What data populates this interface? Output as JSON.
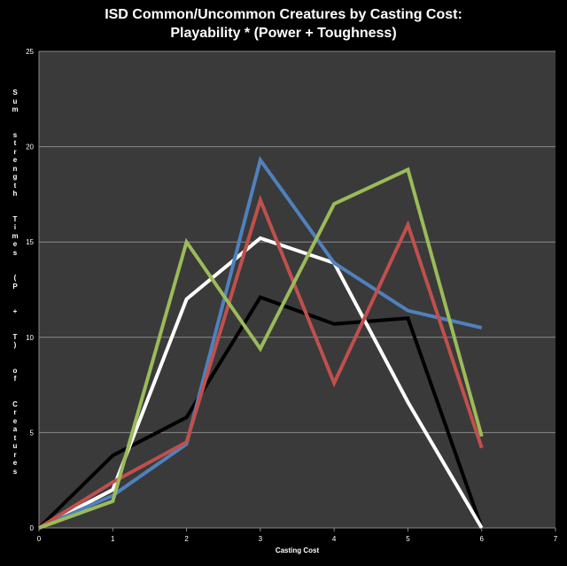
{
  "chart_data": {
    "type": "line",
    "title": "ISD Common/Uncommon Creatures by Casting Cost:",
    "subtitle": "Playability * (Power + Toughness)",
    "xlabel": "Casting Cost",
    "ylabel": "Sum strength Times (P + T) of Creatures",
    "xlim": [
      0,
      7
    ],
    "ylim": [
      0,
      25
    ],
    "x_ticks": [
      0,
      1,
      2,
      3,
      4,
      5,
      6,
      7
    ],
    "y_ticks": [
      0,
      5,
      10,
      15,
      20,
      25
    ],
    "grid": true,
    "legend": "none",
    "x": [
      0,
      1,
      2,
      3,
      4,
      5,
      6
    ],
    "series": [
      {
        "color": "#000000",
        "values": [
          0,
          3.8,
          5.8,
          12.1,
          10.7,
          11.0,
          0
        ]
      },
      {
        "color": "#ffffff",
        "values": [
          0,
          2.0,
          12.0,
          15.2,
          13.9,
          6.6,
          0
        ]
      },
      {
        "color": "#4f81bd",
        "values": [
          0,
          1.7,
          4.4,
          19.3,
          13.9,
          11.4,
          10.5
        ]
      },
      {
        "color": "#c0504d",
        "values": [
          0,
          2.4,
          4.5,
          17.2,
          7.6,
          15.9,
          4.2
        ]
      },
      {
        "color": "#9bbb59",
        "values": [
          0,
          1.4,
          15.0,
          9.4,
          17.0,
          18.8,
          4.8
        ]
      }
    ]
  },
  "colors": {
    "background": "#000000",
    "plot_area": "#3a3a3a",
    "gridline": "#8a8a8a",
    "text": "#ffffff"
  }
}
